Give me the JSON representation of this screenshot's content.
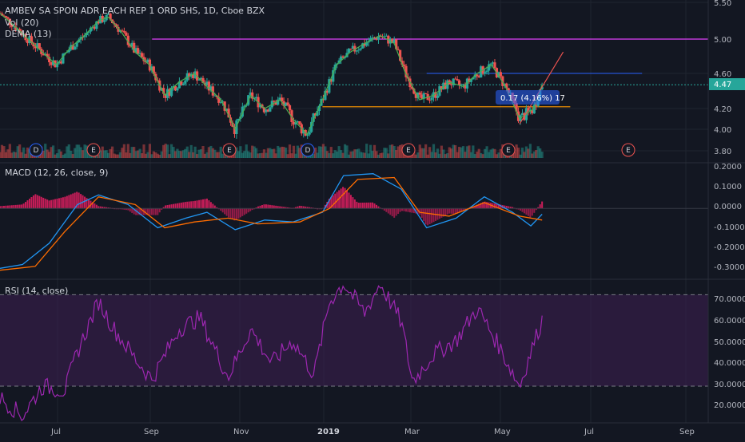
{
  "colors": {
    "background": "#131722",
    "grid": "#1f2430",
    "axis_text": "#b2b5be",
    "bull": "#26a69a",
    "bear": "#ef5350",
    "dema": "#4caf50",
    "macd_line": "#2196f3",
    "signal_line": "#ff6d00",
    "hist_pos": "#e91e63",
    "hist_neg": "#e91e63",
    "rsi_line": "#9c27b0",
    "rsi_band": "#3a1e4f",
    "hline_magenta": "#e040fb",
    "hline_blue": "#2962ff",
    "hline_orange": "#ff9800",
    "trend_red": "#ef5350",
    "price_tag": "#26a69a",
    "measure_box": "#2962ff",
    "event_circle": "#ef5350",
    "event_d": "#2962ff"
  },
  "main_pane": {
    "title": "AMBEV SA SPON ADR EACH REP 1 ORD SHS, 1D, Cboe BZX",
    "vol_label": "Vol (20)",
    "dema_label": "DEMA (13)",
    "price_tag": "4.47",
    "measure_label": "0.17 (4.16%) 17",
    "y_ticks": [
      "5.50",
      "5.00",
      "4.60",
      "4.20",
      "4.00",
      "3.80"
    ],
    "events": [
      {
        "label": "D"
      },
      {
        "label": "E"
      },
      {
        "label": "E"
      },
      {
        "label": "D"
      },
      {
        "label": "E"
      },
      {
        "label": "E"
      },
      {
        "label": "E"
      }
    ]
  },
  "macd_pane": {
    "title": "MACD (12, 26, close, 9)",
    "y_ticks": [
      "0.2000",
      "0.1000",
      "0.0000",
      "-0.1000",
      "-0.2000",
      "-0.3000"
    ]
  },
  "rsi_pane": {
    "title": "RSI (14, close)",
    "y_ticks": [
      "70.0000",
      "60.0000",
      "50.0000",
      "40.0000",
      "30.0000",
      "20.0000"
    ]
  },
  "x_axis": {
    "labels": [
      "Jul",
      "Sep",
      "Nov",
      "2019",
      "Mar",
      "May",
      "Jul",
      "Sep"
    ]
  },
  "chart_data": {
    "type": "line",
    "title": "AMBEV SA SPON ADR EACH REP 1 ORD SHS, 1D, Cboe BZX",
    "price": {
      "ylim": [
        3.7,
        5.5
      ],
      "close_path": [
        [
          "2018-05-16",
          5.35
        ],
        [
          "2018-05-25",
          5.2
        ],
        [
          "2018-06-05",
          5.0
        ],
        [
          "2018-06-15",
          4.85
        ],
        [
          "2018-06-25",
          4.7
        ],
        [
          "2018-07-05",
          4.9
        ],
        [
          "2018-07-15",
          5.05
        ],
        [
          "2018-07-25",
          5.25
        ],
        [
          "2018-08-01",
          5.3
        ],
        [
          "2018-08-10",
          5.1
        ],
        [
          "2018-08-20",
          4.85
        ],
        [
          "2018-08-30",
          4.7
        ],
        [
          "2018-09-10",
          4.35
        ],
        [
          "2018-09-20",
          4.5
        ],
        [
          "2018-10-01",
          4.6
        ],
        [
          "2018-10-10",
          4.45
        ],
        [
          "2018-10-20",
          4.3
        ],
        [
          "2018-10-30",
          4.0
        ],
        [
          "2018-11-10",
          4.35
        ],
        [
          "2018-11-20",
          4.2
        ],
        [
          "2018-12-01",
          4.3
        ],
        [
          "2018-12-10",
          4.1
        ],
        [
          "2018-12-20",
          3.95
        ],
        [
          "2018-12-31",
          4.3
        ],
        [
          "2019-01-10",
          4.7
        ],
        [
          "2019-01-20",
          4.85
        ],
        [
          "2019-01-30",
          4.95
        ],
        [
          "2019-02-10",
          5.05
        ],
        [
          "2019-02-20",
          4.95
        ],
        [
          "2019-02-28",
          4.6
        ],
        [
          "2019-03-10",
          4.3
        ],
        [
          "2019-03-20",
          4.35
        ],
        [
          "2019-03-31",
          4.5
        ],
        [
          "2019-04-10",
          4.45
        ],
        [
          "2019-04-20",
          4.6
        ],
        [
          "2019-04-30",
          4.7
        ],
        [
          "2019-05-10",
          4.45
        ],
        [
          "2019-05-20",
          4.1
        ],
        [
          "2019-05-30",
          4.2
        ],
        [
          "2019-06-05",
          4.47
        ]
      ],
      "horizontal_lines": [
        5.0,
        4.6,
        4.22
      ],
      "last_price": 4.47
    },
    "macd": {
      "ylim": [
        -0.35,
        0.22
      ],
      "macd_path": [
        [
          "2018-05-16",
          -0.31
        ],
        [
          "2018-06-01",
          -0.29
        ],
        [
          "2018-06-20",
          -0.18
        ],
        [
          "2018-07-10",
          0.02
        ],
        [
          "2018-07-25",
          0.07
        ],
        [
          "2018-08-15",
          0.02
        ],
        [
          "2018-09-05",
          -0.1
        ],
        [
          "2018-09-25",
          -0.05
        ],
        [
          "2018-10-10",
          -0.02
        ],
        [
          "2018-10-30",
          -0.11
        ],
        [
          "2018-11-20",
          -0.06
        ],
        [
          "2018-12-10",
          -0.07
        ],
        [
          "2018-12-31",
          -0.02
        ],
        [
          "2019-01-15",
          0.17
        ],
        [
          "2019-02-05",
          0.18
        ],
        [
          "2019-02-25",
          0.1
        ],
        [
          "2019-03-15",
          -0.1
        ],
        [
          "2019-04-05",
          -0.05
        ],
        [
          "2019-04-25",
          0.06
        ],
        [
          "2019-05-15",
          -0.02
        ],
        [
          "2019-05-28",
          -0.09
        ],
        [
          "2019-06-05",
          -0.03
        ]
      ],
      "signal_path": [
        [
          "2018-05-16",
          -0.32
        ],
        [
          "2018-06-10",
          -0.3
        ],
        [
          "2018-07-01",
          -0.12
        ],
        [
          "2018-07-25",
          0.06
        ],
        [
          "2018-08-20",
          0.02
        ],
        [
          "2018-09-10",
          -0.1
        ],
        [
          "2018-10-01",
          -0.07
        ],
        [
          "2018-10-25",
          -0.05
        ],
        [
          "2018-11-15",
          -0.08
        ],
        [
          "2018-12-15",
          -0.07
        ],
        [
          "2019-01-05",
          0.0
        ],
        [
          "2019-01-25",
          0.15
        ],
        [
          "2019-02-20",
          0.16
        ],
        [
          "2019-03-10",
          -0.02
        ],
        [
          "2019-03-31",
          -0.04
        ],
        [
          "2019-04-25",
          0.03
        ],
        [
          "2019-05-20",
          -0.04
        ],
        [
          "2019-06-05",
          -0.06
        ]
      ]
    },
    "rsi": {
      "ylim": [
        15,
        75
      ],
      "levels": [
        70,
        30
      ],
      "rsi_path": [
        [
          "2018-05-16",
          25
        ],
        [
          "2018-06-01",
          17
        ],
        [
          "2018-06-15",
          30
        ],
        [
          "2018-07-01",
          28
        ],
        [
          "2018-07-10",
          45
        ],
        [
          "2018-07-25",
          67
        ],
        [
          "2018-08-05",
          55
        ],
        [
          "2018-08-20",
          42
        ],
        [
          "2018-09-01",
          33
        ],
        [
          "2018-09-20",
          55
        ],
        [
          "2018-10-05",
          60
        ],
        [
          "2018-10-25",
          34
        ],
        [
          "2018-11-10",
          55
        ],
        [
          "2018-11-25",
          40
        ],
        [
          "2018-12-10",
          50
        ],
        [
          "2018-12-25",
          35
        ],
        [
          "2019-01-05",
          67
        ],
        [
          "2019-01-15",
          75
        ],
        [
          "2019-01-30",
          62
        ],
        [
          "2019-02-10",
          75
        ],
        [
          "2019-02-25",
          58
        ],
        [
          "2019-03-05",
          32
        ],
        [
          "2019-03-20",
          44
        ],
        [
          "2019-04-05",
          50
        ],
        [
          "2019-04-20",
          64
        ],
        [
          "2019-05-05",
          48
        ],
        [
          "2019-05-20",
          30
        ],
        [
          "2019-05-28",
          45
        ],
        [
          "2019-06-05",
          59
        ]
      ]
    },
    "x_range": [
      "2018-05-16",
      "2019-10-01"
    ]
  }
}
